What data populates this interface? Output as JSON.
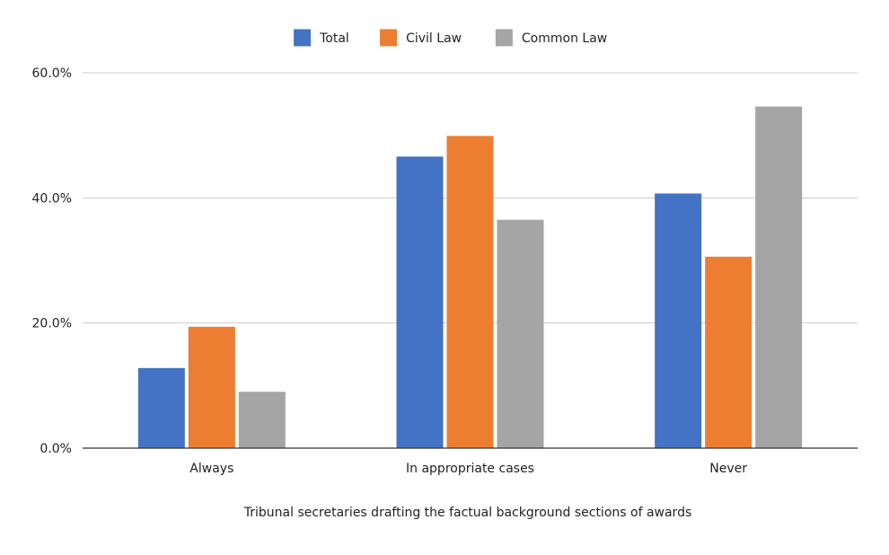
{
  "chart_data": {
    "type": "bar",
    "title": "",
    "xlabel": "Tribunal secretaries drafting the factual background sections of awards",
    "ylabel": "",
    "categories": [
      "Always",
      "In appropriate cases",
      "Never"
    ],
    "series": [
      {
        "name": "Total",
        "color": "#4472c4",
        "values": [
          12.8,
          46.6,
          40.7
        ]
      },
      {
        "name": "Civil Law",
        "color": "#ed7d31",
        "values": [
          19.4,
          49.9,
          30.6
        ]
      },
      {
        "name": "Common Law",
        "color": "#a5a5a5",
        "values": [
          9.0,
          36.5,
          54.6
        ]
      }
    ],
    "ylim": [
      0,
      60
    ],
    "yticks": [
      {
        "value": 0,
        "label": "0.0%"
      },
      {
        "value": 20,
        "label": "20.0%"
      },
      {
        "value": 40,
        "label": "40.0%"
      },
      {
        "value": 60,
        "label": "60.0%"
      }
    ],
    "grid": true,
    "legend_position": "top-center"
  }
}
